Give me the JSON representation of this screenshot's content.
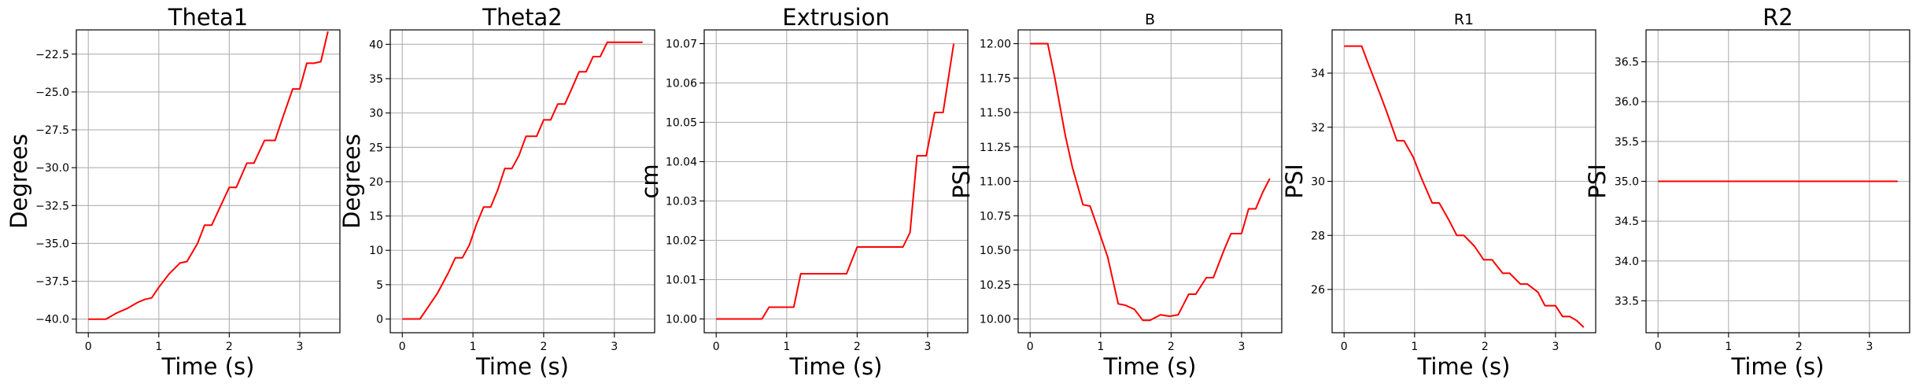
{
  "colors": {
    "line": "#ff0000",
    "grid": "#b0b0b0",
    "background": "#ffffff"
  },
  "chart_data": [
    {
      "type": "line",
      "title": "Theta1",
      "title_size": "large",
      "xlabel": "Time (s)",
      "ylabel": "Degrees",
      "xlim": [
        -0.17,
        3.57
      ],
      "ylim": [
        -40.9,
        -20.9
      ],
      "xticks": [
        0,
        1,
        2,
        3
      ],
      "xtick_labels": [
        "0",
        "1",
        "2",
        "3"
      ],
      "yticks": [
        -40,
        -37.5,
        -35,
        -32.5,
        -30,
        -27.5,
        -25,
        -22.5
      ],
      "ytick_labels": [
        "−40.0",
        "−37.5",
        "−35.0",
        "−32.5",
        "−30.0",
        "−27.5",
        "−25.0",
        "−22.5"
      ],
      "grid": true,
      "series": [
        {
          "x": [
            0,
            0.25,
            0.4,
            0.55,
            0.7,
            0.8,
            0.9,
            1.0,
            1.15,
            1.3,
            1.4,
            1.55,
            1.65,
            1.75,
            1.9,
            2.0,
            2.1,
            2.25,
            2.35,
            2.5,
            2.65,
            2.75,
            2.9,
            3.0,
            3.1,
            3.2,
            3.3,
            3.4
          ],
          "y": [
            -40.0,
            -40.0,
            -39.6,
            -39.3,
            -38.9,
            -38.7,
            -38.6,
            -37.9,
            -37.0,
            -36.3,
            -36.2,
            -35.0,
            -33.8,
            -33.8,
            -32.3,
            -31.3,
            -31.3,
            -29.7,
            -29.7,
            -28.2,
            -28.2,
            -26.8,
            -24.8,
            -24.8,
            -23.1,
            -23.1,
            -23.0,
            -21.0
          ]
        }
      ]
    },
    {
      "type": "line",
      "title": "Theta2",
      "title_size": "large",
      "xlabel": "Time (s)",
      "ylabel": "Degrees",
      "xlim": [
        -0.17,
        3.57
      ],
      "ylim": [
        -2.0,
        42.1
      ],
      "xticks": [
        0,
        1,
        2,
        3
      ],
      "xtick_labels": [
        "0",
        "1",
        "2",
        "3"
      ],
      "yticks": [
        0,
        5,
        10,
        15,
        20,
        25,
        30,
        35,
        40
      ],
      "ytick_labels": [
        "0",
        "5",
        "10",
        "15",
        "20",
        "25",
        "30",
        "35",
        "40"
      ],
      "grid": true,
      "series": [
        {
          "x": [
            0,
            0.25,
            0.35,
            0.5,
            0.65,
            0.75,
            0.85,
            0.95,
            1.05,
            1.15,
            1.25,
            1.35,
            1.45,
            1.55,
            1.65,
            1.75,
            1.9,
            2.0,
            2.1,
            2.2,
            2.3,
            2.4,
            2.5,
            2.6,
            2.7,
            2.8,
            2.9,
            3.0,
            3.1,
            3.2,
            3.3,
            3.4
          ],
          "y": [
            0.0,
            0.0,
            1.5,
            3.8,
            6.7,
            8.9,
            8.9,
            10.8,
            13.8,
            16.3,
            16.3,
            18.8,
            21.9,
            21.9,
            23.8,
            26.6,
            26.6,
            29.0,
            29.0,
            31.3,
            31.3,
            33.6,
            36.0,
            36.0,
            38.2,
            38.2,
            40.3,
            40.3,
            40.3,
            40.3,
            40.3,
            40.3
          ]
        }
      ]
    },
    {
      "type": "line",
      "title": "Extrusion",
      "title_size": "large",
      "xlabel": "Time (s)",
      "ylabel": "cm",
      "xlim": [
        -0.17,
        3.57
      ],
      "ylim": [
        9.9965,
        10.0735
      ],
      "xticks": [
        0,
        1,
        2,
        3
      ],
      "xtick_labels": [
        "0",
        "1",
        "2",
        "3"
      ],
      "yticks": [
        10.0,
        10.01,
        10.02,
        10.03,
        10.04,
        10.05,
        10.06,
        10.07
      ],
      "ytick_labels": [
        "10.00",
        "10.01",
        "10.02",
        "10.03",
        "10.04",
        "10.05",
        "10.06",
        "10.07"
      ],
      "grid": true,
      "series": [
        {
          "x": [
            0,
            0.65,
            0.75,
            1.1,
            1.2,
            1.85,
            2.0,
            2.65,
            2.75,
            2.85,
            2.98,
            3.1,
            3.22,
            3.37
          ],
          "y": [
            10.0,
            10.0,
            10.003,
            10.003,
            10.0115,
            10.0115,
            10.0183,
            10.0183,
            10.022,
            10.0415,
            10.0415,
            10.0525,
            10.0525,
            10.07
          ]
        }
      ]
    },
    {
      "type": "line",
      "title": "B",
      "title_size": "small",
      "xlabel": "Time (s)",
      "ylabel": "PSI",
      "xlim": [
        -0.17,
        3.57
      ],
      "ylim": [
        9.9,
        12.1
      ],
      "xticks": [
        0,
        1,
        2,
        3
      ],
      "xtick_labels": [
        "0",
        "1",
        "2",
        "3"
      ],
      "yticks": [
        10.0,
        10.25,
        10.5,
        10.75,
        11.0,
        11.25,
        11.5,
        11.75,
        12.0
      ],
      "ytick_labels": [
        "10.00",
        "10.25",
        "10.50",
        "10.75",
        "11.00",
        "11.25",
        "11.50",
        "11.75",
        "12.00"
      ],
      "grid": true,
      "series": [
        {
          "x": [
            0,
            0.25,
            0.35,
            0.5,
            0.6,
            0.75,
            0.85,
            0.98,
            1.1,
            1.25,
            1.35,
            1.48,
            1.6,
            1.7,
            1.85,
            1.98,
            2.1,
            2.25,
            2.35,
            2.5,
            2.6,
            2.75,
            2.85,
            3.0,
            3.1,
            3.2,
            3.3,
            3.4
          ],
          "y": [
            12.0,
            12.0,
            11.75,
            11.33,
            11.1,
            10.83,
            10.82,
            10.63,
            10.45,
            10.11,
            10.1,
            10.07,
            9.99,
            9.99,
            10.03,
            10.02,
            10.03,
            10.18,
            10.18,
            10.3,
            10.3,
            10.5,
            10.62,
            10.62,
            10.8,
            10.8,
            10.92,
            11.02
          ]
        }
      ]
    },
    {
      "type": "line",
      "title": "R1",
      "title_size": "small",
      "xlabel": "Time (s)",
      "ylabel": "PSI",
      "xlim": [
        -0.17,
        3.57
      ],
      "ylim": [
        24.4,
        35.6
      ],
      "xticks": [
        0,
        1,
        2,
        3
      ],
      "xtick_labels": [
        "0",
        "1",
        "2",
        "3"
      ],
      "yticks": [
        26,
        28,
        30,
        32,
        34
      ],
      "ytick_labels": [
        "26",
        "28",
        "30",
        "32",
        "34"
      ],
      "grid": true,
      "series": [
        {
          "x": [
            0,
            0.25,
            0.35,
            0.5,
            0.6,
            0.75,
            0.85,
            0.98,
            1.1,
            1.25,
            1.35,
            1.48,
            1.6,
            1.7,
            1.85,
            1.98,
            2.1,
            2.25,
            2.35,
            2.5,
            2.6,
            2.75,
            2.85,
            3.0,
            3.1,
            3.2,
            3.3,
            3.4
          ],
          "y": [
            35.0,
            35.0,
            34.3,
            33.3,
            32.6,
            31.5,
            31.5,
            30.9,
            30.1,
            29.2,
            29.2,
            28.6,
            28.0,
            28.0,
            27.6,
            27.1,
            27.1,
            26.6,
            26.6,
            26.2,
            26.2,
            25.9,
            25.4,
            25.4,
            25.0,
            25.0,
            24.85,
            24.6
          ]
        }
      ]
    },
    {
      "type": "line",
      "title": "R2",
      "title_size": "large",
      "xlabel": "Time (s)",
      "ylabel": "PSI",
      "xlim": [
        -0.17,
        3.57
      ],
      "ylim": [
        33.1,
        36.9
      ],
      "xticks": [
        0,
        1,
        2,
        3
      ],
      "xtick_labels": [
        "0",
        "1",
        "2",
        "3"
      ],
      "yticks": [
        33.5,
        34.0,
        34.5,
        35.0,
        35.5,
        36.0,
        36.5
      ],
      "ytick_labels": [
        "33.5",
        "34.0",
        "34.5",
        "35.0",
        "35.5",
        "36.0",
        "36.5"
      ],
      "grid": true,
      "series": [
        {
          "x": [
            0,
            3.4
          ],
          "y": [
            35.0,
            35.0
          ]
        }
      ]
    }
  ]
}
